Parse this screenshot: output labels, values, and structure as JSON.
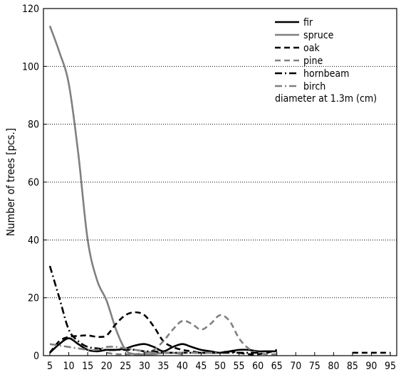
{
  "chart_data": {
    "type": "line",
    "title": "",
    "xlabel": "",
    "ylabel": "Number of trees [pcs.]",
    "xlim": [
      5,
      95
    ],
    "ylim": [
      0,
      120
    ],
    "x_ticks": [
      5,
      10,
      15,
      20,
      25,
      30,
      35,
      40,
      45,
      50,
      55,
      60,
      65,
      70,
      75,
      80,
      85,
      90,
      95
    ],
    "y_ticks": [
      0,
      20,
      40,
      60,
      80,
      100,
      120
    ],
    "grid": "horizontal dotted",
    "legend_position": "top-right",
    "legend_note": "diameter at 1.3m (cm)",
    "series": [
      {
        "name": "fir",
        "color": "#000000",
        "dash": "solid",
        "width": 2.6,
        "points": [
          [
            5,
            1
          ],
          [
            7.5,
            4
          ],
          [
            10,
            6
          ],
          [
            12.5,
            4
          ],
          [
            15,
            2
          ],
          [
            17.5,
            1.5
          ],
          [
            20,
            2
          ],
          [
            22.5,
            2
          ],
          [
            25,
            2.5
          ],
          [
            27.5,
            3.5
          ],
          [
            30,
            4
          ],
          [
            32.5,
            3
          ],
          [
            35,
            1.5
          ],
          [
            37.5,
            3
          ],
          [
            40,
            4
          ],
          [
            42.5,
            3
          ],
          [
            45,
            2
          ],
          [
            47.5,
            1.5
          ],
          [
            50,
            1
          ],
          [
            52.5,
            1.5
          ],
          [
            55,
            2
          ],
          [
            57.5,
            2
          ],
          [
            60,
            1.5
          ],
          [
            62.5,
            1.5
          ],
          [
            65,
            1.5
          ]
        ]
      },
      {
        "name": "spruce",
        "color": "#808080",
        "dash": "solid",
        "width": 2.6,
        "points": [
          [
            5,
            114
          ],
          [
            7.5,
            105
          ],
          [
            10,
            94
          ],
          [
            12.5,
            70
          ],
          [
            15,
            40
          ],
          [
            17.5,
            26
          ],
          [
            20,
            19
          ],
          [
            22.5,
            9
          ],
          [
            25,
            2
          ],
          [
            27.5,
            0.5
          ],
          [
            30,
            0.5
          ],
          [
            32.5,
            0.5
          ],
          [
            35,
            1
          ],
          [
            37.5,
            1
          ],
          [
            40,
            0.5
          ]
        ]
      },
      {
        "name": "oak",
        "color": "#000000",
        "dash": "8,5",
        "width": 2.6,
        "points": [
          [
            5,
            1
          ],
          [
            7.5,
            5
          ],
          [
            10,
            6.5
          ],
          [
            12.5,
            6.8
          ],
          [
            15,
            7
          ],
          [
            17.5,
            6.5
          ],
          [
            20,
            7
          ],
          [
            22.5,
            11
          ],
          [
            25,
            14
          ],
          [
            27.5,
            15
          ],
          [
            30,
            14
          ],
          [
            32.5,
            10
          ],
          [
            35,
            5
          ],
          [
            37.5,
            3
          ],
          [
            40,
            2
          ],
          [
            42.5,
            1.5
          ],
          [
            45,
            1
          ],
          [
            47.5,
            1
          ],
          [
            50,
            1
          ],
          [
            52.5,
            1.5
          ],
          [
            55,
            1
          ],
          [
            57.5,
            0.5
          ],
          [
            60,
            0.5
          ],
          [
            62.5,
            1
          ],
          [
            65,
            2
          ]
        ],
        "extra_points": [
          [
            85,
            1
          ],
          [
            87.5,
            1
          ],
          [
            90,
            1
          ],
          [
            92.5,
            1
          ],
          [
            95,
            1
          ]
        ]
      },
      {
        "name": "pine",
        "color": "#808080",
        "dash": "8,5",
        "width": 2.6,
        "points": [
          [
            20,
            1
          ],
          [
            22.5,
            0.5
          ],
          [
            25,
            0.5
          ],
          [
            27.5,
            0.5
          ],
          [
            30,
            1
          ],
          [
            32.5,
            2
          ],
          [
            35,
            5
          ],
          [
            37.5,
            9
          ],
          [
            40,
            12
          ],
          [
            42.5,
            11
          ],
          [
            45,
            9
          ],
          [
            47.5,
            11
          ],
          [
            50,
            14
          ],
          [
            52.5,
            12
          ],
          [
            55,
            6
          ],
          [
            57.5,
            2.5
          ],
          [
            60,
            1
          ],
          [
            62.5,
            0.5
          ],
          [
            65,
            0.5
          ]
        ]
      },
      {
        "name": "hornbeam",
        "color": "#000000",
        "dash": "10,4,2,4",
        "width": 2.6,
        "points": [
          [
            5,
            31
          ],
          [
            7.5,
            20
          ],
          [
            10,
            9
          ],
          [
            12.5,
            5
          ],
          [
            15,
            3
          ],
          [
            17.5,
            2.5
          ],
          [
            20,
            2
          ],
          [
            22.5,
            2
          ],
          [
            25,
            2
          ],
          [
            27.5,
            2
          ],
          [
            30,
            1.5
          ],
          [
            32.5,
            1.5
          ],
          [
            35,
            1
          ],
          [
            37.5,
            1
          ],
          [
            40,
            1
          ],
          [
            42.5,
            1
          ],
          [
            45,
            1
          ],
          [
            47.5,
            1
          ],
          [
            50,
            1
          ],
          [
            52.5,
            1
          ],
          [
            55,
            1
          ],
          [
            57.5,
            1
          ],
          [
            60,
            1
          ]
        ]
      },
      {
        "name": "birch",
        "color": "#808080",
        "dash": "10,4,2,4",
        "width": 2.6,
        "points": [
          [
            5,
            4
          ],
          [
            7.5,
            3.5
          ],
          [
            10,
            3
          ],
          [
            12.5,
            2.5
          ],
          [
            15,
            2
          ],
          [
            17.5,
            2
          ],
          [
            20,
            3
          ],
          [
            22.5,
            3
          ],
          [
            25,
            2.5
          ],
          [
            27.5,
            2
          ],
          [
            30,
            1.5
          ],
          [
            32.5,
            1
          ],
          [
            35,
            1
          ],
          [
            37.5,
            1
          ],
          [
            40,
            1
          ],
          [
            42.5,
            1
          ],
          [
            45,
            1
          ],
          [
            47.5,
            1
          ],
          [
            50,
            1
          ]
        ]
      }
    ]
  }
}
